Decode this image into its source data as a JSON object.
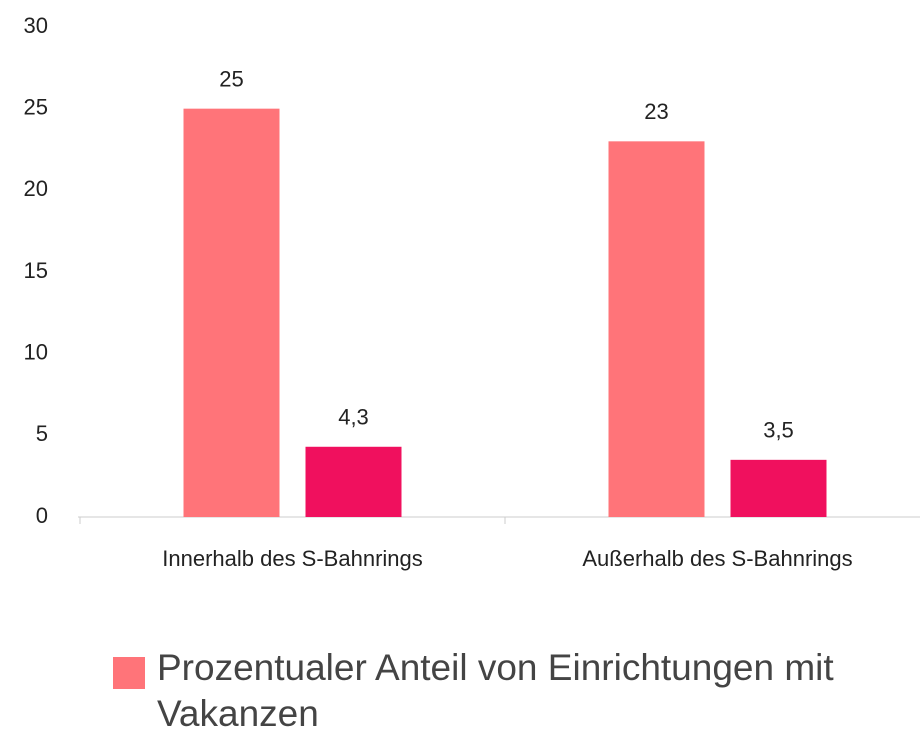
{
  "chart_data": {
    "type": "bar",
    "categories": [
      "Innerhalb des S-Bahnrings",
      "Außerhalb des S-Bahnrings"
    ],
    "series": [
      {
        "name": "Prozentualer Anteil von Einrichtungen mit Vakanzen",
        "color": "#ff7479",
        "values": [
          25,
          23
        ]
      },
      {
        "color": "#f0105e",
        "values": [
          4.3,
          3.5
        ],
        "value_labels": [
          "4,3",
          "3,5"
        ]
      }
    ],
    "ylim": [
      0,
      30
    ],
    "yticks": [
      0,
      5,
      10,
      15,
      20,
      25,
      30
    ],
    "grid": false
  }
}
